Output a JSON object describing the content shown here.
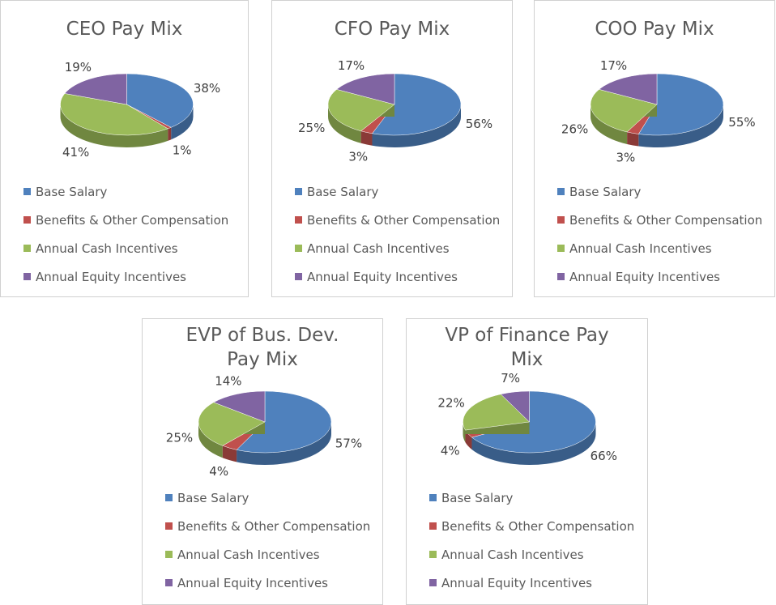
{
  "chart_data": [
    {
      "type": "pie",
      "title": "CEO Pay Mix",
      "categories": [
        "Base Salary",
        "Benefits & Other Compensation",
        "Annual Cash Incentives",
        "Annual Equity Incentives"
      ],
      "values": [
        38,
        1,
        41,
        19
      ],
      "value_labels": [
        "38%",
        "1%",
        "41%",
        "19%"
      ],
      "colors": [
        "#4f81bd",
        "#c0504d",
        "#9bbb59",
        "#8064a2"
      ]
    },
    {
      "type": "pie",
      "title": "CFO Pay Mix",
      "categories": [
        "Base Salary",
        "Benefits & Other Compensation",
        "Annual Cash Incentives",
        "Annual Equity Incentives"
      ],
      "values": [
        56,
        3,
        25,
        17
      ],
      "value_labels": [
        "56%",
        "3%",
        "25%",
        "17%"
      ],
      "colors": [
        "#4f81bd",
        "#c0504d",
        "#9bbb59",
        "#8064a2"
      ]
    },
    {
      "type": "pie",
      "title": "COO Pay Mix",
      "categories": [
        "Base Salary",
        "Benefits & Other Compensation",
        "Annual Cash Incentives",
        "Annual Equity Incentives"
      ],
      "values": [
        55,
        3,
        26,
        17
      ],
      "value_labels": [
        "55%",
        "3%",
        "26%",
        "17%"
      ],
      "colors": [
        "#4f81bd",
        "#c0504d",
        "#9bbb59",
        "#8064a2"
      ]
    },
    {
      "type": "pie",
      "title": "EVP of Bus. Dev. Pay Mix",
      "categories": [
        "Base Salary",
        "Benefits & Other Compensation",
        "Annual Cash Incentives",
        "Annual Equity Incentives"
      ],
      "values": [
        57,
        4,
        25,
        14
      ],
      "value_labels": [
        "57%",
        "4%",
        "25%",
        "14%"
      ],
      "colors": [
        "#4f81bd",
        "#c0504d",
        "#9bbb59",
        "#8064a2"
      ]
    },
    {
      "type": "pie",
      "title": "VP of Finance Pay Mix",
      "categories": [
        "Base Salary",
        "Benefits & Other Compensation",
        "Annual Cash Incentives",
        "Annual Equity Incentives"
      ],
      "values": [
        66,
        4,
        22,
        7
      ],
      "value_labels": [
        "66%",
        "4%",
        "22%",
        "7%"
      ],
      "colors": [
        "#4f81bd",
        "#c0504d",
        "#9bbb59",
        "#8064a2"
      ]
    }
  ]
}
